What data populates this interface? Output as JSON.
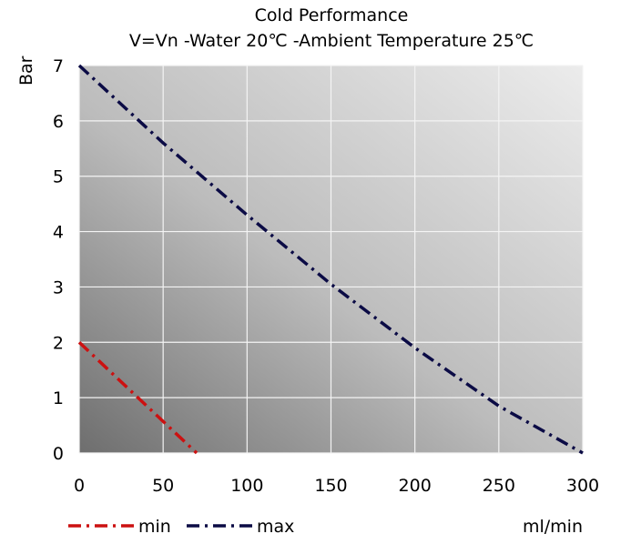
{
  "chart_data": {
    "type": "line",
    "title": "Cold Performance",
    "subtitle": "V=Vn -Water 20℃ -Ambient Temperature 25℃",
    "xlabel": "ml/min",
    "ylabel": "Bar",
    "xlim": [
      0,
      300
    ],
    "ylim": [
      0,
      7
    ],
    "x_ticks": [
      "0",
      "50",
      "100",
      "150",
      "200",
      "250",
      "300"
    ],
    "y_ticks": [
      "0",
      "1",
      "2",
      "3",
      "4",
      "5",
      "6",
      "7"
    ],
    "grid": true,
    "legend_position": "bottom-left",
    "series": [
      {
        "name": "min",
        "color": "#cc1111",
        "line_style": "dash-dot",
        "points": [
          [
            0,
            2
          ],
          [
            70,
            0
          ]
        ]
      },
      {
        "name": "max",
        "color": "#0b0b45",
        "line_style": "dash-dot",
        "points": [
          [
            0,
            7
          ],
          [
            50,
            5.6
          ],
          [
            100,
            4.3
          ],
          [
            150,
            3.05
          ],
          [
            200,
            1.9
          ],
          [
            250,
            0.85
          ],
          [
            300,
            0
          ]
        ]
      }
    ]
  }
}
